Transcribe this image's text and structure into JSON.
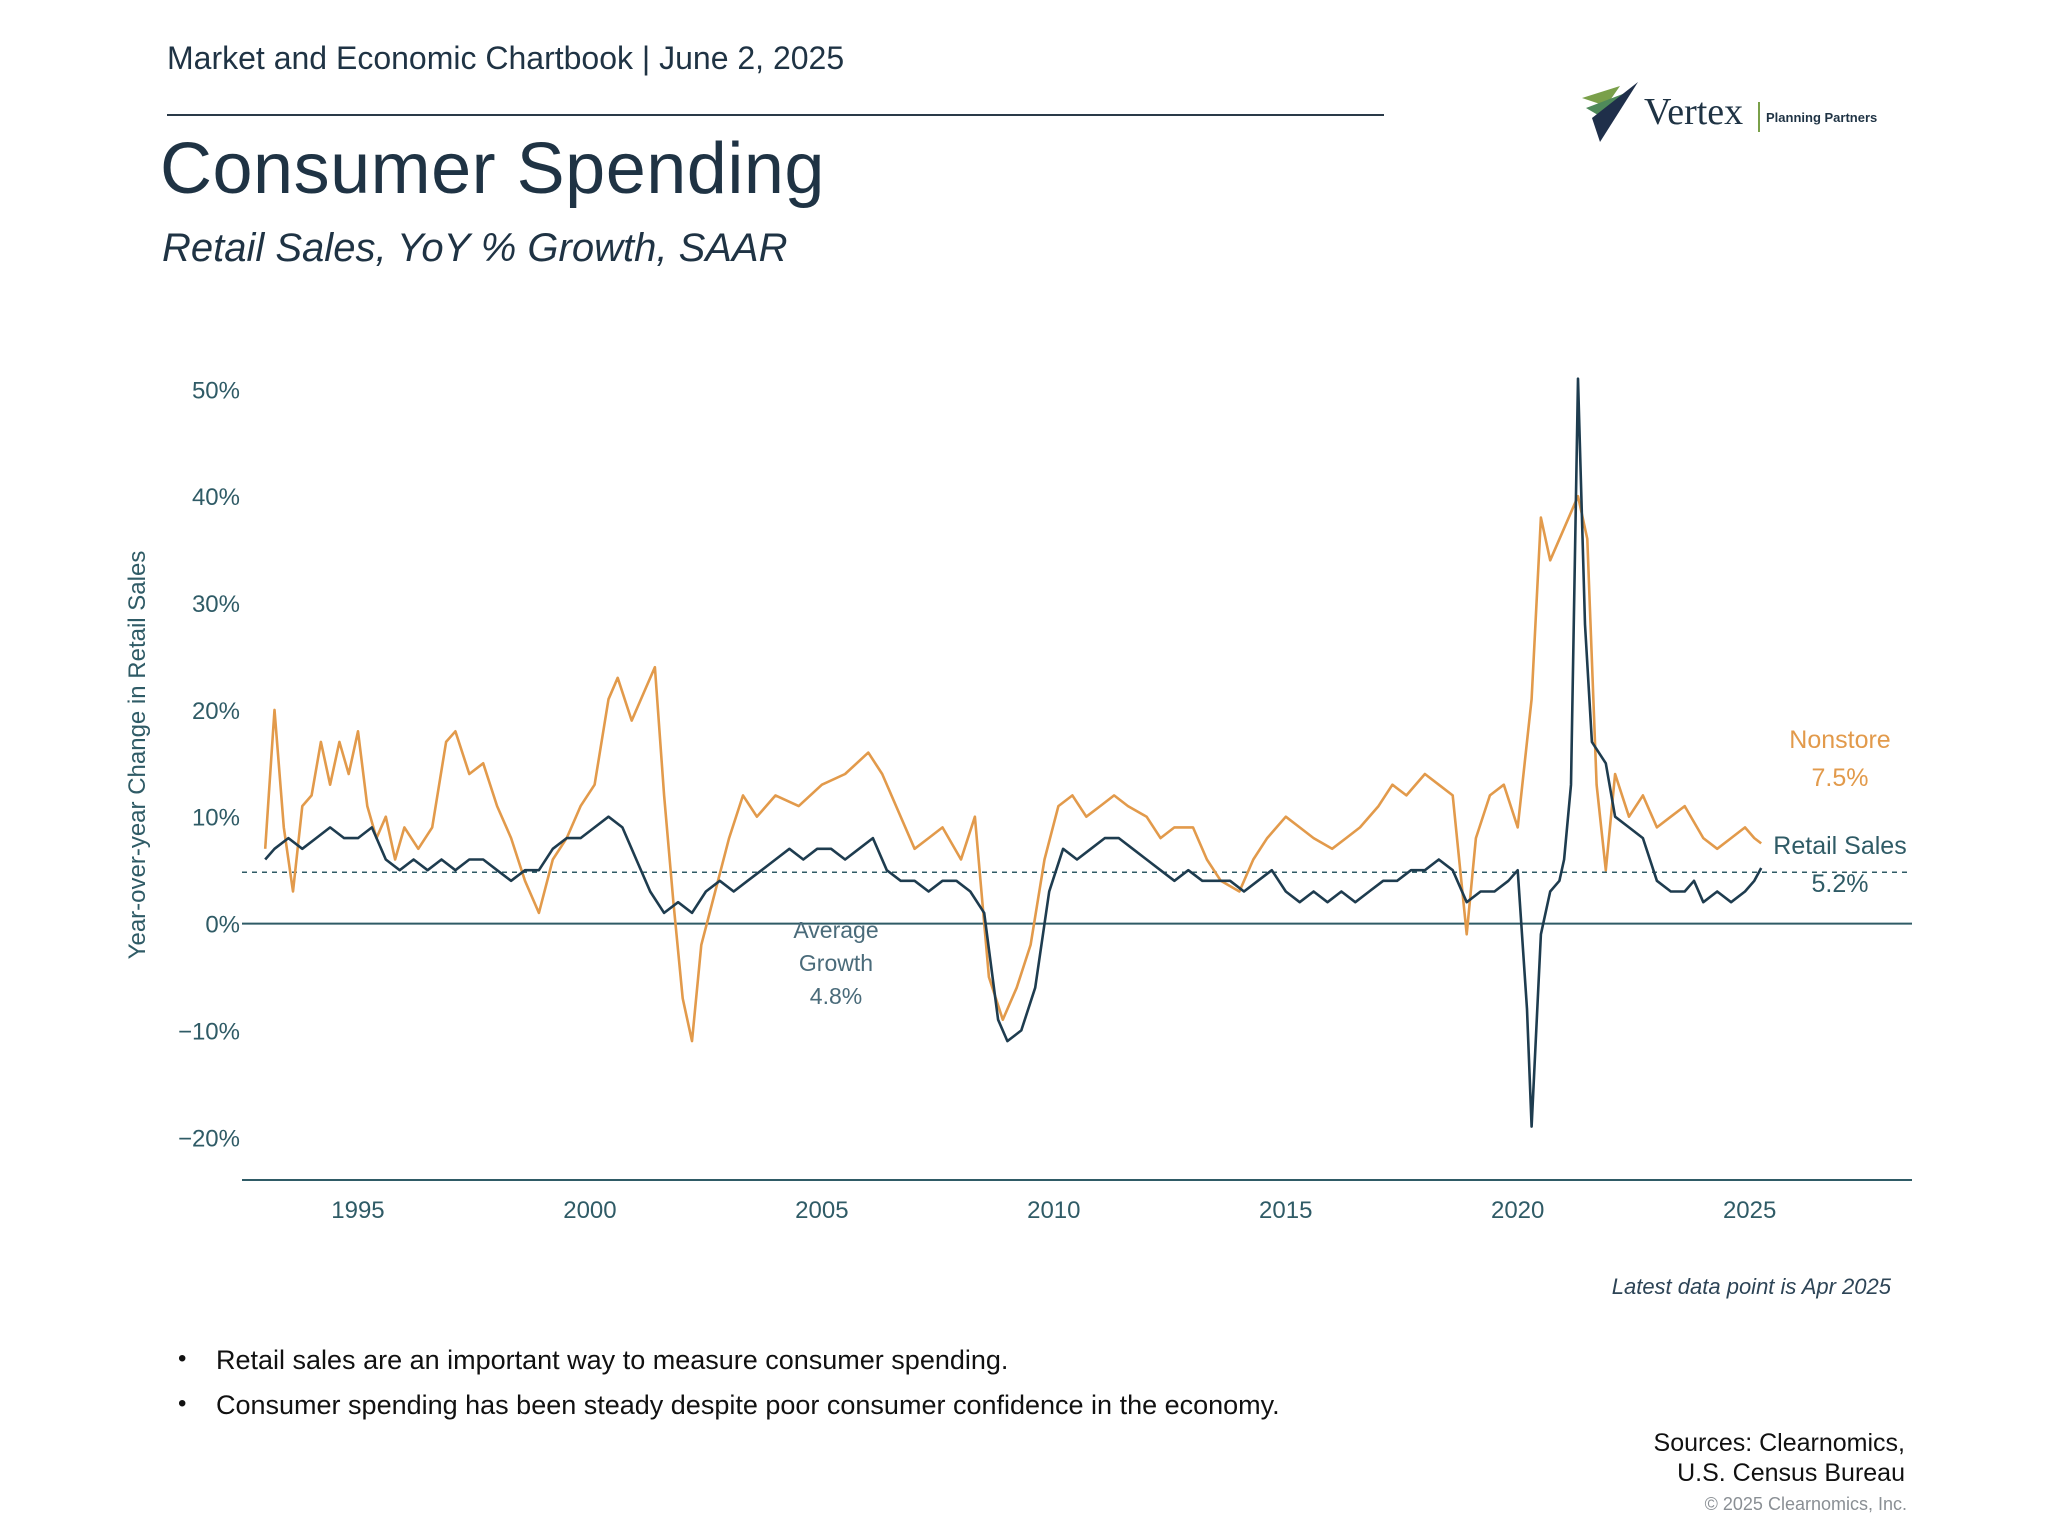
{
  "header": {
    "line": "Market and Economic Chartbook | June 2, 2025",
    "title": "Consumer Spending",
    "subtitle": "Retail Sales, YoY % Growth, SAAR"
  },
  "logo": {
    "name": "Vertex",
    "tagline": "Planning Partners",
    "icon": "vertex-chevron-icon"
  },
  "colors": {
    "retail": "#1e3c4f",
    "nonstore": "#e29a4b",
    "text": "#1f3344",
    "axis": "#2f5b66"
  },
  "chart_data": {
    "type": "line",
    "title": "Consumer Spending",
    "subtitle": "Retail Sales, YoY % Growth, SAAR",
    "ylabel": "Year-over-year Change in Retail Sales",
    "xlabel": "",
    "xlim": [
      1992.5,
      2028.5
    ],
    "ylim": [
      -24,
      52
    ],
    "yticks": [
      -20,
      -10,
      0,
      10,
      20,
      30,
      40,
      50
    ],
    "ytick_labels": [
      "−20%",
      "−10%",
      "0%",
      "10%",
      "20%",
      "30%",
      "40%",
      "50%"
    ],
    "xticks": [
      1995,
      2000,
      2005,
      2010,
      2015,
      2020,
      2025
    ],
    "xtick_labels": [
      "1995",
      "2000",
      "2005",
      "2010",
      "2015",
      "2020",
      "2025"
    ],
    "average": {
      "value": 4.8,
      "label_lines": [
        "Average",
        "Growth",
        "4.8%"
      ]
    },
    "series": [
      {
        "name": "Nonstore",
        "label_lines": [
          "Nonstore",
          "7.5%"
        ],
        "color": "#e29a4b",
        "points": [
          [
            1993.0,
            7
          ],
          [
            1993.2,
            20
          ],
          [
            1993.4,
            9
          ],
          [
            1993.6,
            3
          ],
          [
            1993.8,
            11
          ],
          [
            1994.0,
            12
          ],
          [
            1994.2,
            17
          ],
          [
            1994.4,
            13
          ],
          [
            1994.6,
            17
          ],
          [
            1994.8,
            14
          ],
          [
            1995.0,
            18
          ],
          [
            1995.2,
            11
          ],
          [
            1995.4,
            8
          ],
          [
            1995.6,
            10
          ],
          [
            1995.8,
            6
          ],
          [
            1996.0,
            9
          ],
          [
            1996.3,
            7
          ],
          [
            1996.6,
            9
          ],
          [
            1996.9,
            17
          ],
          [
            1997.1,
            18
          ],
          [
            1997.4,
            14
          ],
          [
            1997.7,
            15
          ],
          [
            1998.0,
            11
          ],
          [
            1998.3,
            8
          ],
          [
            1998.6,
            4
          ],
          [
            1998.9,
            1
          ],
          [
            1999.2,
            6
          ],
          [
            1999.5,
            8
          ],
          [
            1999.8,
            11
          ],
          [
            2000.1,
            13
          ],
          [
            2000.4,
            21
          ],
          [
            2000.6,
            23
          ],
          [
            2000.9,
            19
          ],
          [
            2001.2,
            22
          ],
          [
            2001.4,
            24
          ],
          [
            2001.6,
            12
          ],
          [
            2001.8,
            2
          ],
          [
            2002.0,
            -7
          ],
          [
            2002.2,
            -11
          ],
          [
            2002.4,
            -2
          ],
          [
            2002.7,
            3
          ],
          [
            2003.0,
            8
          ],
          [
            2003.3,
            12
          ],
          [
            2003.6,
            10
          ],
          [
            2004.0,
            12
          ],
          [
            2004.5,
            11
          ],
          [
            2005.0,
            13
          ],
          [
            2005.5,
            14
          ],
          [
            2006.0,
            16
          ],
          [
            2006.3,
            14
          ],
          [
            2006.6,
            11
          ],
          [
            2007.0,
            7
          ],
          [
            2007.3,
            8
          ],
          [
            2007.6,
            9
          ],
          [
            2008.0,
            6
          ],
          [
            2008.3,
            10
          ],
          [
            2008.6,
            -5
          ],
          [
            2008.9,
            -9
          ],
          [
            2009.2,
            -6
          ],
          [
            2009.5,
            -2
          ],
          [
            2009.8,
            6
          ],
          [
            2010.1,
            11
          ],
          [
            2010.4,
            12
          ],
          [
            2010.7,
            10
          ],
          [
            2011.0,
            11
          ],
          [
            2011.3,
            12
          ],
          [
            2011.6,
            11
          ],
          [
            2012.0,
            10
          ],
          [
            2012.3,
            8
          ],
          [
            2012.6,
            9
          ],
          [
            2013.0,
            9
          ],
          [
            2013.3,
            6
          ],
          [
            2013.6,
            4
          ],
          [
            2014.0,
            3
          ],
          [
            2014.3,
            6
          ],
          [
            2014.6,
            8
          ],
          [
            2015.0,
            10
          ],
          [
            2015.3,
            9
          ],
          [
            2015.6,
            8
          ],
          [
            2016.0,
            7
          ],
          [
            2016.3,
            8
          ],
          [
            2016.6,
            9
          ],
          [
            2017.0,
            11
          ],
          [
            2017.3,
            13
          ],
          [
            2017.6,
            12
          ],
          [
            2018.0,
            14
          ],
          [
            2018.3,
            13
          ],
          [
            2018.6,
            12
          ],
          [
            2018.9,
            -1
          ],
          [
            2019.1,
            8
          ],
          [
            2019.4,
            12
          ],
          [
            2019.7,
            13
          ],
          [
            2020.0,
            9
          ],
          [
            2020.3,
            21
          ],
          [
            2020.5,
            38
          ],
          [
            2020.7,
            34
          ],
          [
            2021.0,
            37
          ],
          [
            2021.3,
            40
          ],
          [
            2021.5,
            36
          ],
          [
            2021.7,
            13
          ],
          [
            2021.9,
            5
          ],
          [
            2022.1,
            14
          ],
          [
            2022.4,
            10
          ],
          [
            2022.7,
            12
          ],
          [
            2023.0,
            9
          ],
          [
            2023.3,
            10
          ],
          [
            2023.6,
            11
          ],
          [
            2024.0,
            8
          ],
          [
            2024.3,
            7
          ],
          [
            2024.6,
            8
          ],
          [
            2024.9,
            9
          ],
          [
            2025.1,
            8
          ],
          [
            2025.25,
            7.5
          ]
        ]
      },
      {
        "name": "Retail Sales",
        "label_lines": [
          "Retail Sales",
          "5.2%"
        ],
        "color": "#1e3c4f",
        "points": [
          [
            1993.0,
            6
          ],
          [
            1993.2,
            7
          ],
          [
            1993.5,
            8
          ],
          [
            1993.8,
            7
          ],
          [
            1994.1,
            8
          ],
          [
            1994.4,
            9
          ],
          [
            1994.7,
            8
          ],
          [
            1995.0,
            8
          ],
          [
            1995.3,
            9
          ],
          [
            1995.6,
            6
          ],
          [
            1995.9,
            5
          ],
          [
            1996.2,
            6
          ],
          [
            1996.5,
            5
          ],
          [
            1996.8,
            6
          ],
          [
            1997.1,
            5
          ],
          [
            1997.4,
            6
          ],
          [
            1997.7,
            6
          ],
          [
            1998.0,
            5
          ],
          [
            1998.3,
            4
          ],
          [
            1998.6,
            5
          ],
          [
            1998.9,
            5
          ],
          [
            1999.2,
            7
          ],
          [
            1999.5,
            8
          ],
          [
            1999.8,
            8
          ],
          [
            2000.1,
            9
          ],
          [
            2000.4,
            10
          ],
          [
            2000.7,
            9
          ],
          [
            2001.0,
            6
          ],
          [
            2001.3,
            3
          ],
          [
            2001.6,
            1
          ],
          [
            2001.9,
            2
          ],
          [
            2002.2,
            1
          ],
          [
            2002.5,
            3
          ],
          [
            2002.8,
            4
          ],
          [
            2003.1,
            3
          ],
          [
            2003.4,
            4
          ],
          [
            2003.7,
            5
          ],
          [
            2004.0,
            6
          ],
          [
            2004.3,
            7
          ],
          [
            2004.6,
            6
          ],
          [
            2004.9,
            7
          ],
          [
            2005.2,
            7
          ],
          [
            2005.5,
            6
          ],
          [
            2005.8,
            7
          ],
          [
            2006.1,
            8
          ],
          [
            2006.4,
            5
          ],
          [
            2006.7,
            4
          ],
          [
            2007.0,
            4
          ],
          [
            2007.3,
            3
          ],
          [
            2007.6,
            4
          ],
          [
            2007.9,
            4
          ],
          [
            2008.2,
            3
          ],
          [
            2008.5,
            1
          ],
          [
            2008.8,
            -9
          ],
          [
            2009.0,
            -11
          ],
          [
            2009.3,
            -10
          ],
          [
            2009.6,
            -6
          ],
          [
            2009.9,
            3
          ],
          [
            2010.2,
            7
          ],
          [
            2010.5,
            6
          ],
          [
            2010.8,
            7
          ],
          [
            2011.1,
            8
          ],
          [
            2011.4,
            8
          ],
          [
            2011.7,
            7
          ],
          [
            2012.0,
            6
          ],
          [
            2012.3,
            5
          ],
          [
            2012.6,
            4
          ],
          [
            2012.9,
            5
          ],
          [
            2013.2,
            4
          ],
          [
            2013.5,
            4
          ],
          [
            2013.8,
            4
          ],
          [
            2014.1,
            3
          ],
          [
            2014.4,
            4
          ],
          [
            2014.7,
            5
          ],
          [
            2015.0,
            3
          ],
          [
            2015.3,
            2
          ],
          [
            2015.6,
            3
          ],
          [
            2015.9,
            2
          ],
          [
            2016.2,
            3
          ],
          [
            2016.5,
            2
          ],
          [
            2016.8,
            3
          ],
          [
            2017.1,
            4
          ],
          [
            2017.4,
            4
          ],
          [
            2017.7,
            5
          ],
          [
            2018.0,
            5
          ],
          [
            2018.3,
            6
          ],
          [
            2018.6,
            5
          ],
          [
            2018.9,
            2
          ],
          [
            2019.2,
            3
          ],
          [
            2019.5,
            3
          ],
          [
            2019.8,
            4
          ],
          [
            2020.0,
            5
          ],
          [
            2020.2,
            -8
          ],
          [
            2020.3,
            -19
          ],
          [
            2020.5,
            -1
          ],
          [
            2020.7,
            3
          ],
          [
            2020.9,
            4
          ],
          [
            2021.0,
            6
          ],
          [
            2021.15,
            13
          ],
          [
            2021.3,
            51
          ],
          [
            2021.45,
            28
          ],
          [
            2021.6,
            17
          ],
          [
            2021.9,
            15
          ],
          [
            2022.1,
            10
          ],
          [
            2022.4,
            9
          ],
          [
            2022.7,
            8
          ],
          [
            2023.0,
            4
          ],
          [
            2023.3,
            3
          ],
          [
            2023.6,
            3
          ],
          [
            2023.8,
            4
          ],
          [
            2024.0,
            2
          ],
          [
            2024.3,
            3
          ],
          [
            2024.6,
            2
          ],
          [
            2024.9,
            3
          ],
          [
            2025.1,
            4
          ],
          [
            2025.25,
            5.2
          ]
        ]
      }
    ],
    "note": "Latest data point is Apr 2025"
  },
  "bullets": [
    "Retail sales are an important way to measure consumer spending.",
    "Consumer spending has been steady despite poor consumer confidence in the economy."
  ],
  "sources": {
    "line1": "Sources: Clearnomics,",
    "line2": "U.S. Census Bureau"
  },
  "copyright": "© 2025 Clearnomics, Inc."
}
